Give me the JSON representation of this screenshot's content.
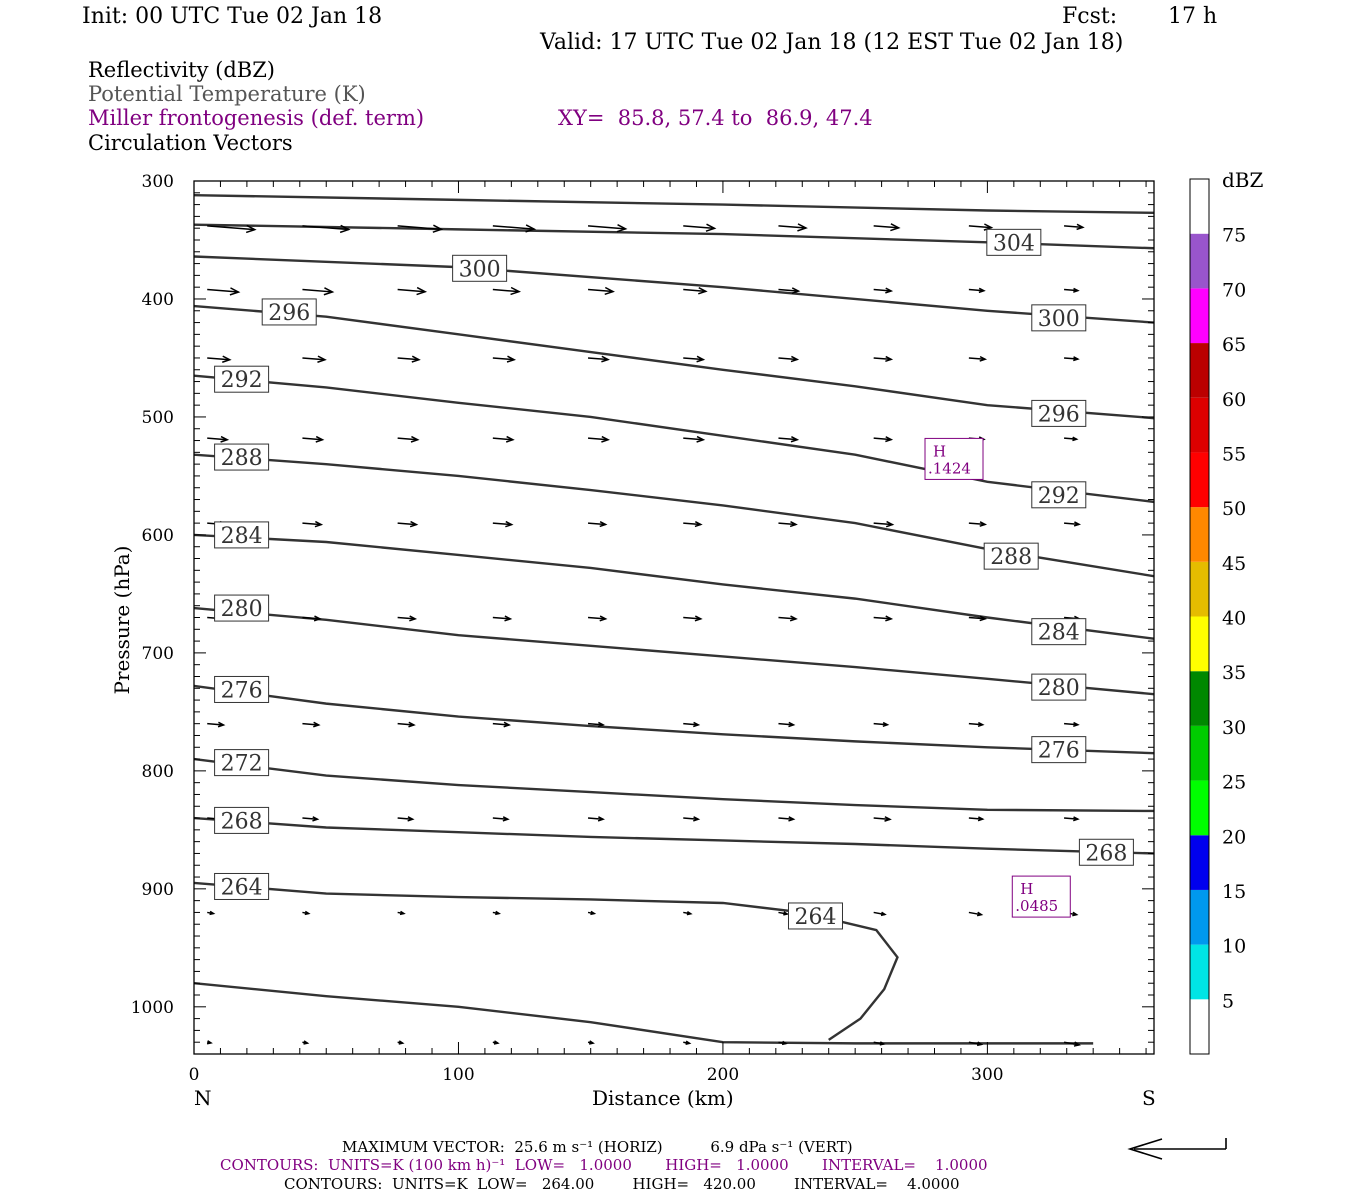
{
  "header": {
    "init": "Init: 00 UTC Tue 02 Jan 18",
    "fcst_label": "Fcst:",
    "fcst_value": "17 h",
    "valid": "Valid: 17 UTC Tue 02 Jan 18 (12 EST Tue 02 Jan 18)"
  },
  "fields": {
    "reflectivity": "Reflectivity (dBZ)",
    "theta": "Potential Temperature (K)",
    "frontogenesis": "Miller frontogenesis (def. term)",
    "xy": "XY=  85.8, 57.4 to  86.9, 47.4",
    "vectors": "Circulation Vectors"
  },
  "colors": {
    "contour": "#333333",
    "highlight": "#800080",
    "arrow": "#000000"
  },
  "chart_data": {
    "type": "cross-section",
    "xlabel": "Distance (km)",
    "ylabel": "Pressure (hPa)",
    "xlim": [
      0,
      363
    ],
    "ylim": [
      1040,
      300
    ],
    "x_ticks": [
      0,
      100,
      200,
      300
    ],
    "y_ticks": [
      300,
      400,
      500,
      600,
      700,
      800,
      900,
      1000
    ],
    "left_end_label": "N",
    "right_end_label": "S",
    "theta_contours": [
      {
        "value": "304",
        "points": [
          [
            0,
            312
          ],
          [
            100,
            316
          ],
          [
            200,
            320
          ],
          [
            300,
            325
          ],
          [
            363,
            327
          ]
        ]
      },
      {
        "value": "304",
        "points": [
          [
            0,
            337
          ],
          [
            100,
            341
          ],
          [
            200,
            345
          ],
          [
            300,
            352
          ],
          [
            363,
            357
          ]
        ]
      },
      {
        "value": "300",
        "points": [
          [
            0,
            364
          ],
          [
            100,
            373
          ],
          [
            200,
            390
          ],
          [
            300,
            410
          ],
          [
            363,
            420
          ]
        ]
      },
      {
        "value": "296",
        "points": [
          [
            0,
            406
          ],
          [
            50,
            415
          ],
          [
            100,
            430
          ],
          [
            150,
            445
          ],
          [
            200,
            460
          ],
          [
            250,
            474
          ],
          [
            300,
            490
          ],
          [
            363,
            501
          ]
        ]
      },
      {
        "value": "292",
        "points": [
          [
            0,
            465
          ],
          [
            50,
            475
          ],
          [
            100,
            488
          ],
          [
            150,
            500
          ],
          [
            200,
            516
          ],
          [
            250,
            532
          ],
          [
            300,
            555
          ],
          [
            363,
            572
          ]
        ]
      },
      {
        "value": "288",
        "points": [
          [
            0,
            532
          ],
          [
            50,
            540
          ],
          [
            100,
            550
          ],
          [
            150,
            562
          ],
          [
            200,
            575
          ],
          [
            250,
            590
          ],
          [
            300,
            612
          ],
          [
            363,
            635
          ]
        ]
      },
      {
        "value": "284",
        "points": [
          [
            0,
            600
          ],
          [
            50,
            606
          ],
          [
            100,
            617
          ],
          [
            150,
            628
          ],
          [
            200,
            642
          ],
          [
            250,
            654
          ],
          [
            300,
            670
          ],
          [
            363,
            688
          ]
        ]
      },
      {
        "value": "280",
        "points": [
          [
            0,
            662
          ],
          [
            50,
            672
          ],
          [
            100,
            685
          ],
          [
            150,
            694
          ],
          [
            200,
            703
          ],
          [
            250,
            712
          ],
          [
            300,
            722
          ],
          [
            363,
            735
          ]
        ]
      },
      {
        "value": "276",
        "points": [
          [
            0,
            728
          ],
          [
            50,
            743
          ],
          [
            100,
            754
          ],
          [
            150,
            762
          ],
          [
            200,
            769
          ],
          [
            250,
            775
          ],
          [
            300,
            780
          ],
          [
            363,
            785
          ]
        ]
      },
      {
        "value": "272",
        "points": [
          [
            0,
            790
          ],
          [
            50,
            804
          ],
          [
            100,
            812
          ],
          [
            150,
            818
          ],
          [
            200,
            824
          ],
          [
            250,
            829
          ],
          [
            300,
            833
          ],
          [
            363,
            834
          ]
        ]
      },
      {
        "value": "268",
        "points": [
          [
            0,
            840
          ],
          [
            50,
            848
          ],
          [
            100,
            852
          ],
          [
            150,
            856
          ],
          [
            200,
            859
          ],
          [
            250,
            862
          ],
          [
            300,
            866
          ],
          [
            363,
            870
          ]
        ]
      },
      {
        "value": "264",
        "points": [
          [
            0,
            895
          ],
          [
            50,
            904
          ],
          [
            100,
            907
          ],
          [
            150,
            909
          ],
          [
            200,
            912
          ],
          [
            230,
            920
          ],
          [
            258,
            935
          ],
          [
            266,
            958
          ],
          [
            261,
            985
          ],
          [
            252,
            1010
          ],
          [
            240,
            1028
          ]
        ]
      },
      {
        "value": "264",
        "points": [
          [
            0,
            980
          ],
          [
            50,
            991
          ],
          [
            100,
            1000
          ],
          [
            150,
            1013
          ],
          [
            200,
            1030
          ],
          [
            250,
            1031
          ],
          [
            340,
            1031
          ]
        ]
      }
    ],
    "contour_labels": [
      {
        "text": "304",
        "x": 310,
        "p": 352
      },
      {
        "text": "300",
        "x": 108,
        "p": 374
      },
      {
        "text": "300",
        "x": 327,
        "p": 416
      },
      {
        "text": "296",
        "x": 36,
        "p": 411
      },
      {
        "text": "296",
        "x": 327,
        "p": 497
      },
      {
        "text": "292",
        "x": 18,
        "p": 468
      },
      {
        "text": "292",
        "x": 327,
        "p": 566
      },
      {
        "text": "288",
        "x": 18,
        "p": 534
      },
      {
        "text": "288",
        "x": 309,
        "p": 618
      },
      {
        "text": "284",
        "x": 18,
        "p": 600
      },
      {
        "text": "284",
        "x": 327,
        "p": 682
      },
      {
        "text": "280",
        "x": 18,
        "p": 662
      },
      {
        "text": "280",
        "x": 327,
        "p": 729
      },
      {
        "text": "276",
        "x": 18,
        "p": 731
      },
      {
        "text": "276",
        "x": 327,
        "p": 782
      },
      {
        "text": "272",
        "x": 18,
        "p": 793
      },
      {
        "text": "268",
        "x": 18,
        "p": 842
      },
      {
        "text": "268",
        "x": 345,
        "p": 869
      },
      {
        "text": "264",
        "x": 18,
        "p": 898
      },
      {
        "text": "264",
        "x": 235,
        "p": 923
      }
    ],
    "frontogenesis_highs": [
      {
        "label": "H",
        "value": ".1424",
        "x": 287,
        "p": 536
      },
      {
        "label": "H",
        "value": ".0485",
        "x": 320,
        "p": 907
      }
    ],
    "vector_rows": [
      {
        "p": 338,
        "u": [
          38,
          37,
          35,
          33,
          30,
          25,
          22,
          20,
          18,
          15
        ]
      },
      {
        "p": 392,
        "u": [
          25,
          24,
          22,
          21,
          20,
          18,
          16,
          14,
          12,
          11
        ]
      },
      {
        "p": 450,
        "u": [
          18,
          18,
          17,
          17,
          16,
          16,
          15,
          14,
          13,
          11
        ]
      },
      {
        "p": 518,
        "u": [
          16,
          16,
          16,
          16,
          16,
          16,
          15,
          14,
          12,
          10
        ]
      },
      {
        "p": 590,
        "u": [
          15,
          15,
          15,
          15,
          14,
          14,
          14,
          15,
          13,
          12
        ]
      },
      {
        "p": 670,
        "u": [
          14,
          14,
          14,
          14,
          14,
          14,
          14,
          14,
          13,
          12
        ]
      },
      {
        "p": 760,
        "u": [
          13,
          13,
          13,
          13,
          12,
          12,
          12,
          11,
          11,
          11
        ]
      },
      {
        "p": 840,
        "u": [
          12,
          12,
          12,
          12,
          12,
          12,
          12,
          13,
          11,
          11
        ]
      },
      {
        "p": 920,
        "u": [
          5,
          5,
          5,
          5,
          5,
          6,
          7,
          9,
          10,
          10
        ]
      },
      {
        "p": 1030,
        "u": [
          3,
          4,
          4,
          4,
          4,
          5,
          6,
          8,
          10,
          12
        ]
      }
    ],
    "colorbar": {
      "title": "dBZ",
      "levels": [
        "5",
        "10",
        "15",
        "20",
        "25",
        "30",
        "35",
        "40",
        "45",
        "50",
        "55",
        "60",
        "65",
        "70",
        "75"
      ],
      "colors": [
        "#ffffff",
        "#00e5e5",
        "#0099ee",
        "#0000ee",
        "#00ff00",
        "#00cc00",
        "#008800",
        "#ffff00",
        "#e5bc00",
        "#ff8800",
        "#ff0000",
        "#dd0000",
        "#bb0000",
        "#ff00ff",
        "#9955cc",
        "#ffffff"
      ]
    }
  },
  "footer": {
    "max_vector": "MAXIMUM VECTOR:  25.6 m s⁻¹ (HORIZ)          6.9 dPa s⁻¹ (VERT)",
    "contours_purple": "CONTOURS:  UNITS=K (100 km h)⁻¹  LOW=   1.0000       HIGH=   1.0000       INTERVAL=    1.0000",
    "contours_black": "CONTOURS:  UNITS=K  LOW=   264.00        HIGH=   420.00        INTERVAL=    4.0000"
  }
}
